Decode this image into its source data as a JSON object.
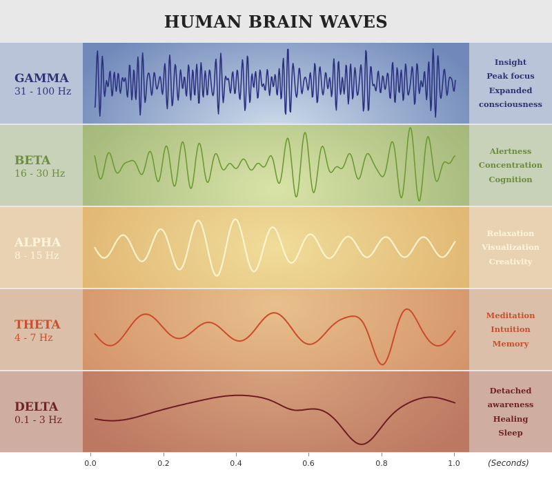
{
  "title": "HUMAN BRAIN WAVES",
  "bands": [
    {
      "name": "GAMMA",
      "range": "31 - 100 Hz",
      "associations": [
        "Insight",
        "Peak focus",
        "Expanded",
        "consciousness"
      ],
      "text_color": "#2e3474",
      "wave_color": "#2a2f80"
    },
    {
      "name": "BETA",
      "range": "16 - 30 Hz",
      "associations": [
        "Alertness",
        "Concentration",
        "Cognition"
      ],
      "text_color": "#6b8c3c",
      "wave_color": "#6a9a30"
    },
    {
      "name": "ALPHA",
      "range": "8 - 15 Hz",
      "associations": [
        "Relaxation",
        "Visualization",
        "Creativity"
      ],
      "text_color": "#fff6dc",
      "wave_color": "#fff8d2"
    },
    {
      "name": "THETA",
      "range": "4 - 7 Hz",
      "associations": [
        "Meditation",
        "Intuition",
        "Memory"
      ],
      "text_color": "#c8502e",
      "wave_color": "#cc4a2a"
    },
    {
      "name": "DELTA",
      "range": "0.1 - 3 Hz",
      "associations": [
        "Detached",
        "awareness",
        "Healing",
        "Sleep"
      ],
      "text_color": "#6e2424",
      "wave_color": "#6e1c22"
    }
  ],
  "axis": {
    "ticks": [
      "0.0",
      "0.2",
      "0.4",
      "0.6",
      "0.8",
      "1.0"
    ],
    "unit": "(Seconds)"
  }
}
